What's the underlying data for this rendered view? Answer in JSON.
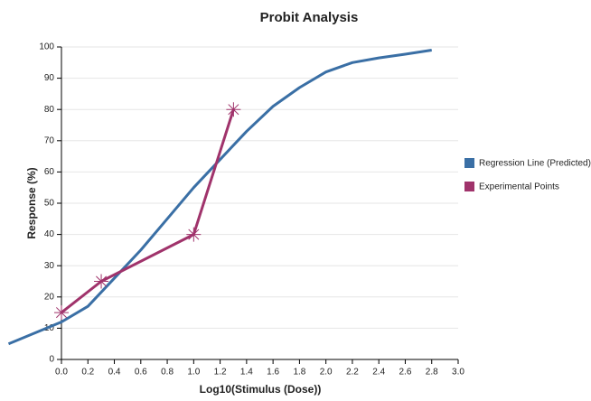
{
  "chart_data": {
    "type": "line",
    "title": "Probit Analysis",
    "x_label": "Log10(Stimulus (Dose))",
    "y_label": "Response (%)",
    "xlim": [
      0,
      3.0
    ],
    "xticks": [
      {
        "value": 0,
        "label": "0.0"
      },
      0.2,
      0.4,
      0.6,
      0.8,
      {
        "value": 1,
        "label": "1.0"
      },
      1.2,
      1.4,
      1.6,
      1.8,
      {
        "value": 2,
        "label": "2.0"
      },
      2.2,
      2.4,
      2.6,
      2.8,
      {
        "value": 3,
        "label": "3.0"
      }
    ],
    "ylim": [
      0,
      100
    ],
    "yticks": [
      0,
      10,
      20,
      30,
      40,
      50,
      60,
      70,
      80,
      90,
      100
    ],
    "grid": true,
    "legend": "right",
    "series": [
      {
        "name": "Regression Line (Predicted)",
        "color": "#3a6fa5",
        "x": [
          -0.4,
          0,
          0.2,
          0.4,
          0.6,
          0.8,
          1.0,
          1.2,
          1.4,
          1.6,
          1.8,
          2.0,
          2.2,
          2.4,
          2.6,
          2.8
        ],
        "values": [
          5,
          12,
          17,
          26,
          35,
          45,
          55,
          64,
          73,
          81,
          87,
          92,
          95,
          96.5,
          97.7,
          99
        ]
      },
      {
        "name": "Experimental Points",
        "color": "#a0336b",
        "markers": true,
        "x": [
          0,
          0.301,
          1.0,
          1.301
        ],
        "values": [
          15,
          25,
          40,
          80
        ]
      }
    ]
  }
}
